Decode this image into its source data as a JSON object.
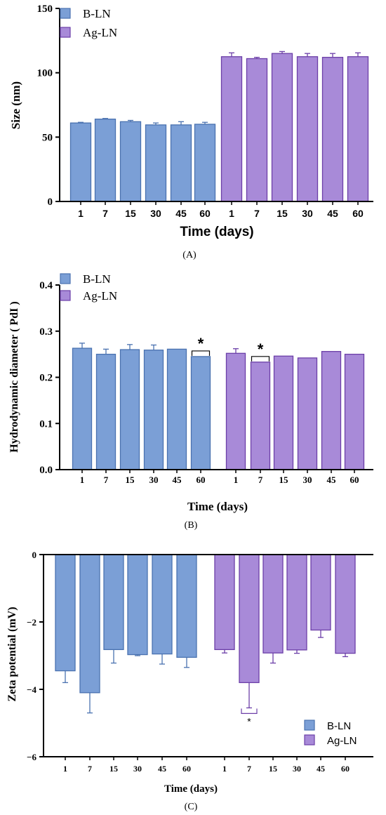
{
  "colors": {
    "b_fill": "#7b9fd6",
    "b_edge": "#4a72b0",
    "ag_fill": "#a88ad8",
    "ag_edge": "#6c3fa8",
    "axis": "#000000"
  },
  "chart_data": [
    {
      "type": "bar",
      "panel_label": "(A)",
      "xlabel": "Time (days)",
      "ylabel": "Size (nm)",
      "ylim": [
        0,
        150
      ],
      "yticks": [
        0,
        50,
        100,
        150
      ],
      "categories": [
        "1",
        "7",
        "15",
        "30",
        "45",
        "60"
      ],
      "legend": [
        "B-LN",
        "Ag-LN"
      ],
      "legend_position": "top-left",
      "series": [
        {
          "name": "B-LN",
          "values": [
            61,
            64,
            62,
            59.5,
            59.5,
            60
          ],
          "errors": [
            0.5,
            0.5,
            1,
            1.5,
            2.5,
            1.5
          ]
        },
        {
          "name": "Ag-LN",
          "values": [
            112.5,
            111,
            115,
            112.5,
            112,
            112.5
          ],
          "errors": [
            3,
            1,
            1.5,
            2.5,
            3,
            3
          ]
        }
      ],
      "significance": []
    },
    {
      "type": "bar",
      "panel_label": "(B)",
      "xlabel": "Time (days)",
      "ylabel": "Hydrodynamic diameter ( PdI )",
      "ylim": [
        0,
        0.4
      ],
      "yticks": [
        "0.0",
        "0.1",
        "0.2",
        "0.3",
        "0.4"
      ],
      "categories": [
        "1",
        "7",
        "15",
        "30",
        "45",
        "60"
      ],
      "legend": [
        "B-LN",
        "Ag-LN"
      ],
      "legend_position": "top-left",
      "series": [
        {
          "name": "B-LN",
          "values": [
            0.263,
            0.25,
            0.26,
            0.259,
            0.261,
            0.245
          ],
          "errors": [
            0.011,
            0.011,
            0.011,
            0.011,
            0,
            0
          ]
        },
        {
          "name": "Ag-LN",
          "values": [
            0.252,
            0.233,
            0.246,
            0.242,
            0.256,
            0.25
          ],
          "errors": [
            0.01,
            0,
            0,
            0,
            0,
            0
          ]
        }
      ],
      "significance": [
        {
          "series": "B-LN",
          "category": "60",
          "mark": "*"
        },
        {
          "series": "Ag-LN",
          "category": "7",
          "mark": "*"
        }
      ]
    },
    {
      "type": "bar",
      "panel_label": "(C)",
      "xlabel": "Time (days)",
      "ylabel": "Zeta potential (mV)",
      "ylim": [
        -6,
        0
      ],
      "yticks": [
        "0",
        "-2",
        "-4",
        "-6"
      ],
      "categories": [
        "1",
        "7",
        "15",
        "30",
        "45",
        "60"
      ],
      "legend": [
        "B-LN",
        "Ag-LN"
      ],
      "legend_position": "bottom-right",
      "series": [
        {
          "name": "B-LN",
          "values": [
            -3.45,
            -4.1,
            -2.82,
            -2.97,
            -2.95,
            -3.05
          ],
          "errors": [
            0.35,
            0.6,
            0.4,
            0.03,
            0.3,
            0.3
          ]
        },
        {
          "name": "Ag-LN",
          "values": [
            -2.82,
            -3.8,
            -2.92,
            -2.83,
            -2.24,
            -2.93
          ],
          "errors": [
            0.1,
            0.75,
            0.3,
            0.1,
            0.22,
            0.1
          ]
        }
      ],
      "significance": [
        {
          "series": "Ag-LN",
          "category": "7",
          "mark": "*"
        }
      ]
    }
  ]
}
